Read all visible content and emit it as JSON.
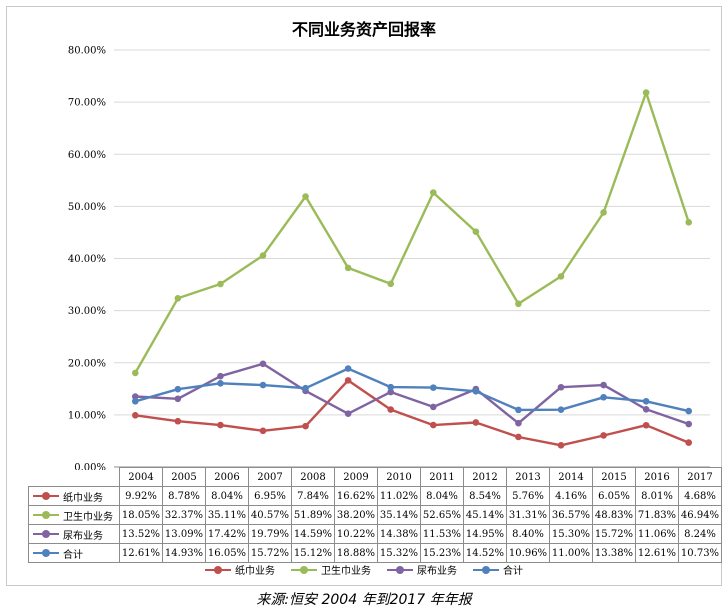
{
  "chart_data": {
    "type": "line",
    "title": "不同业务资产回报率",
    "categories": [
      "2004",
      "2005",
      "2006",
      "2007",
      "2008",
      "2009",
      "2010",
      "2011",
      "2012",
      "2013",
      "2014",
      "2015",
      "2016",
      "2017"
    ],
    "ylim": [
      0,
      80
    ],
    "yticks": [
      "0.00%",
      "10.00%",
      "20.00%",
      "30.00%",
      "40.00%",
      "50.00%",
      "60.00%",
      "70.00%",
      "80.00%"
    ],
    "grid": true,
    "legend_position": "bottom",
    "series": [
      {
        "name": "纸巾业务",
        "color": "#c0504d",
        "values": [
          9.92,
          8.78,
          8.04,
          6.95,
          7.84,
          16.62,
          11.02,
          8.04,
          8.54,
          5.76,
          4.16,
          6.05,
          8.01,
          4.68
        ],
        "labels": [
          "9.92%",
          "8.78%",
          "8.04%",
          "6.95%",
          "7.84%",
          "16.62%",
          "11.02%",
          "8.04%",
          "8.54%",
          "5.76%",
          "4.16%",
          "6.05%",
          "8.01%",
          "4.68%"
        ]
      },
      {
        "name": "卫生巾业务",
        "color": "#9bbb59",
        "values": [
          18.05,
          32.37,
          35.11,
          40.57,
          51.89,
          38.2,
          35.14,
          52.65,
          45.14,
          31.31,
          36.57,
          48.83,
          71.83,
          46.94
        ],
        "labels": [
          "18.05%",
          "32.37%",
          "35.11%",
          "40.57%",
          "51.89%",
          "38.20%",
          "35.14%",
          "52.65%",
          "45.14%",
          "31.31%",
          "36.57%",
          "48.83%",
          "71.83%",
          "46.94%"
        ]
      },
      {
        "name": "尿布业务",
        "color": "#8064a2",
        "values": [
          13.52,
          13.09,
          17.42,
          19.79,
          14.59,
          10.22,
          14.38,
          11.53,
          14.95,
          8.4,
          15.3,
          15.72,
          11.06,
          8.24
        ],
        "labels": [
          "13.52%",
          "13.09%",
          "17.42%",
          "19.79%",
          "14.59%",
          "10.22%",
          "14.38%",
          "11.53%",
          "14.95%",
          "8.40%",
          "15.30%",
          "15.72%",
          "11.06%",
          "8.24%"
        ]
      },
      {
        "name": "合计",
        "color": "#4f81bd",
        "values": [
          12.61,
          14.93,
          16.05,
          15.72,
          15.12,
          18.88,
          15.32,
          15.23,
          14.52,
          10.96,
          11.0,
          13.38,
          12.61,
          10.73
        ],
        "labels": [
          "12.61%",
          "14.93%",
          "16.05%",
          "15.72%",
          "15.12%",
          "18.88%",
          "15.32%",
          "15.23%",
          "14.52%",
          "10.96%",
          "11.00%",
          "13.38%",
          "12.61%",
          "10.73%"
        ]
      }
    ]
  },
  "source_note": "来源:恒安 2004 年到2017 年年报"
}
